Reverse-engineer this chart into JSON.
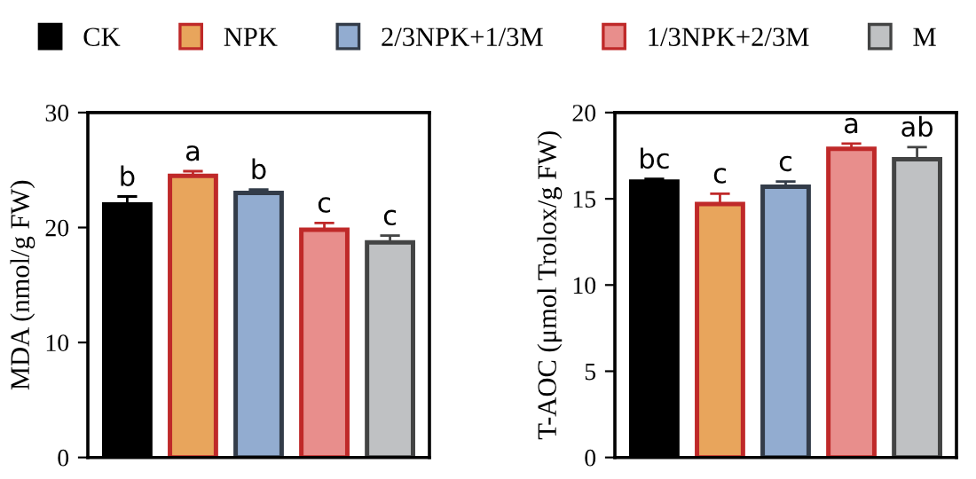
{
  "chart_data": [
    {
      "type": "bar",
      "ylabel": "MDA (nmol/g FW)",
      "categories": [
        null
      ],
      "ylim": [
        0,
        30
      ],
      "yticks": [
        0,
        10,
        20,
        30
      ],
      "legend": "top",
      "grid": false,
      "tick_labels": "y",
      "series": [
        {
          "name": "CK",
          "color": "#000000",
          "values": [
            22.0
          ],
          "errors": [
            0.7
          ],
          "value_labels": [
            "b"
          ]
        },
        {
          "name": "NPK",
          "color": "#e8a55c",
          "values": [
            24.5
          ],
          "errors": [
            0.4
          ],
          "value_labels": [
            "a"
          ]
        },
        {
          "name": "2/3NPK+1/3M",
          "color": "#92acd0",
          "values": [
            23.0
          ],
          "errors": [
            0.3
          ],
          "value_labels": [
            "b"
          ]
        },
        {
          "name": "1/3NPK+2/3M",
          "color": "#e88e8c",
          "values": [
            19.8
          ],
          "errors": [
            0.6
          ],
          "value_labels": [
            "c"
          ]
        },
        {
          "name": "M",
          "color": "#bfc1c3",
          "values": [
            18.7
          ],
          "errors": [
            0.6
          ],
          "value_labels": [
            "c"
          ]
        }
      ]
    },
    {
      "type": "bar",
      "ylabel": "T-AOC (μmol Trolox/g FW)",
      "categories": [
        null
      ],
      "ylim": [
        0,
        20
      ],
      "yticks": [
        0,
        5,
        10,
        15,
        20
      ],
      "grid": false,
      "tick_labels": "y",
      "series": [
        {
          "color": "#000000",
          "values": [
            16.0
          ],
          "errors": [
            0.15
          ],
          "value_labels": [
            "bc"
          ]
        },
        {
          "color": "#e8a55c",
          "values": [
            14.7
          ],
          "errors": [
            0.6
          ],
          "value_labels": [
            "c"
          ]
        },
        {
          "color": "#92acd0",
          "values": [
            15.7
          ],
          "errors": [
            0.3
          ],
          "value_labels": [
            "c"
          ]
        },
        {
          "color": "#e88e8c",
          "values": [
            17.9
          ],
          "errors": [
            0.3
          ],
          "value_labels": [
            "a"
          ]
        },
        {
          "color": "#bfc1c3",
          "values": [
            17.3
          ],
          "errors": [
            0.7
          ],
          "value_labels": [
            "ab"
          ]
        }
      ]
    }
  ]
}
